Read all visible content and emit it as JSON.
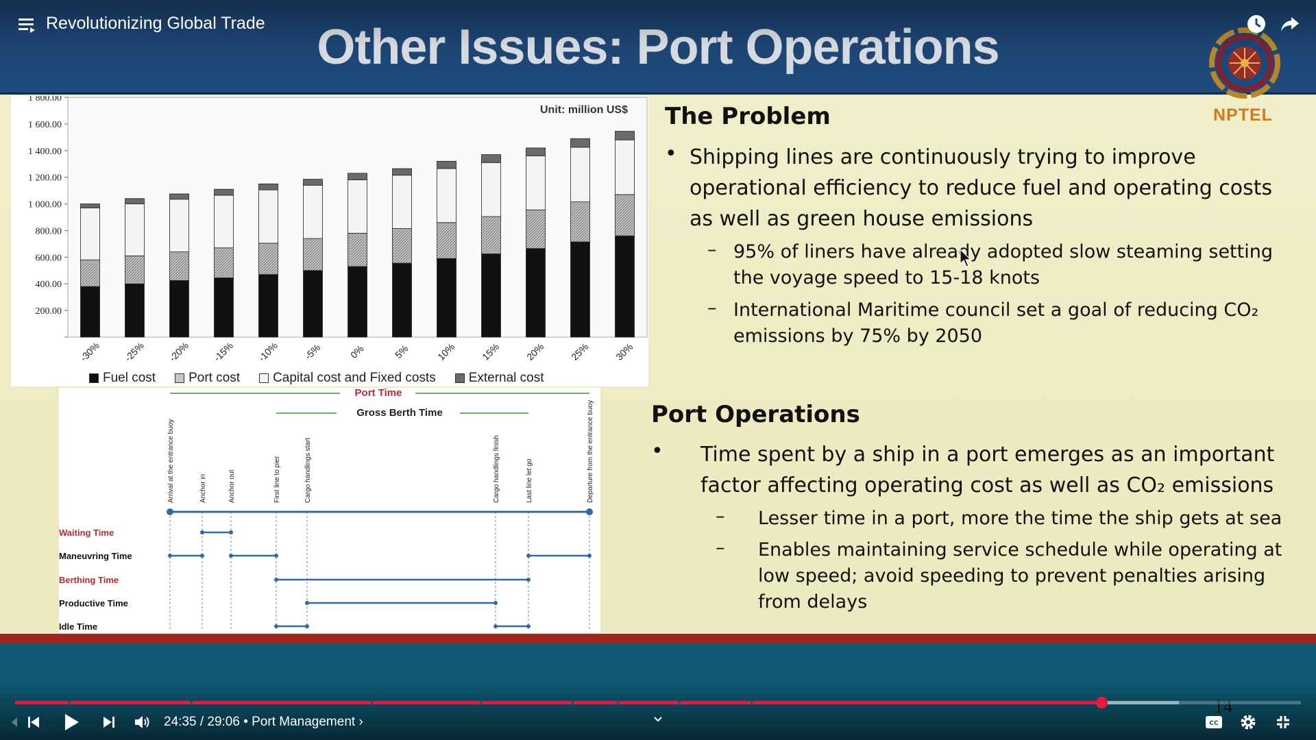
{
  "player": {
    "video_title": "Revolutionizing Global Trade",
    "time_current": "24:35",
    "time_total": "29:06",
    "time_text": "24:35 / 29:06 • Port Management ›",
    "chapter": "Port Management",
    "progress_fraction": 0.845,
    "buffer_fraction": 0.905,
    "accent_color": "#e8193c",
    "icons": [
      "playlist-icon",
      "watch-later-icon",
      "share-icon",
      "previous-icon",
      "play-icon",
      "next-icon",
      "volume-icon",
      "chevron-down-icon",
      "captions-icon",
      "settings-icon",
      "exit-fullscreen-icon"
    ]
  },
  "slide": {
    "title": "Other Issues: Port Operations",
    "logo_text": "NPTEL",
    "slide_number": "14",
    "problem": {
      "heading": "The Problem",
      "bullet": "Shipping lines are continuously trying to improve operational efficiency to reduce fuel and operating costs as well as green house emissions",
      "subs": [
        "95%  of liners have already adopted slow steaming setting the voyage speed to 15-18 knots",
        "International Maritime council set a goal of reducing CO₂ emissions by 75% by 2050"
      ]
    },
    "port_ops": {
      "heading": "Port Operations",
      "bullet": "Time spent by a ship in a port emerges as an important factor affecting operating cost as well as CO₂ emissions",
      "subs": [
        "Lesser time in a port, more the time the ship gets at sea",
        "Enables maintaining service schedule while operating at low speed; avoid speeding to prevent penalties arising from delays"
      ]
    },
    "diagram": {
      "port_time_label": "Port Time",
      "gross_berth_label": "Gross Berth Time",
      "events": [
        "Arrival at the entrance buoy",
        "Anchor in",
        "Anchor out",
        "First line to pier",
        "Cargo handlings start",
        "Cargo handlings finish",
        "Last line let go",
        "Departure from the entrance buoy"
      ],
      "rows": [
        {
          "label": "Waiting Time",
          "color": "#c0282d"
        },
        {
          "label": "Maneuvring Time",
          "color": "#111111"
        },
        {
          "label": "Berthing Time",
          "color": "#c0282d"
        },
        {
          "label": "Productive Time",
          "color": "#111111"
        },
        {
          "label": "Idle Time",
          "color": "#111111"
        }
      ]
    }
  },
  "chart_data": {
    "type": "bar",
    "unit_label": "Unit: million US$",
    "categories": [
      "-30%",
      "-25%",
      "-20%",
      "-15%",
      "-10%",
      "-5%",
      "0%",
      "5%",
      "10%",
      "15%",
      "20%",
      "25%",
      "30%"
    ],
    "series": [
      {
        "name": "Fuel cost",
        "color": "#111111",
        "values": [
          380,
          400,
          425,
          445,
          470,
          500,
          530,
          555,
          590,
          625,
          665,
          715,
          760
        ]
      },
      {
        "name": "Port cost",
        "color": "#9a9a9a",
        "values": [
          200,
          210,
          215,
          225,
          235,
          240,
          250,
          260,
          270,
          280,
          290,
          300,
          310
        ]
      },
      {
        "name": "Capital cost and Fixed costs",
        "color": "#f4f4f4",
        "values": [
          390,
          390,
          395,
          395,
          400,
          400,
          400,
          400,
          405,
          405,
          405,
          410,
          410
        ]
      },
      {
        "name": "External cost",
        "color": "#6a6a6a",
        "values": [
          30,
          40,
          40,
          45,
          45,
          45,
          50,
          50,
          55,
          60,
          60,
          65,
          65
        ]
      }
    ],
    "yticks": [
      "",
      "200.00",
      "400.00",
      "600.00",
      "800.00",
      "1 000.00",
      "1 200.00",
      "1 400.00",
      "1 600.00",
      "1 800.00"
    ],
    "ylim": [
      0,
      1800
    ],
    "stacked": true,
    "legend_position": "bottom"
  }
}
